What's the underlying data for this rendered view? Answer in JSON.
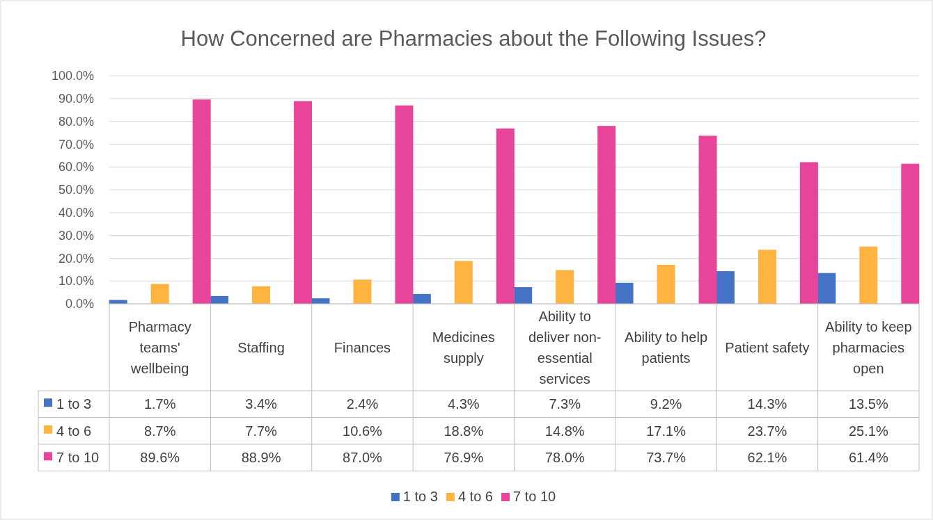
{
  "chart_data": {
    "type": "bar",
    "title": "How Concerned are Pharmacies about the Following Issues?",
    "categories": [
      "Pharmacy teams' wellbeing",
      "Staffing",
      "Finances",
      "Medicines supply",
      "Ability to deliver non-essential services",
      "Ability to help patients",
      "Patient safety",
      "Ability to keep pharmacies open"
    ],
    "series": [
      {
        "name": "1 to 3",
        "color": "#4472c4",
        "values": [
          1.7,
          3.4,
          2.4,
          4.3,
          7.3,
          9.2,
          14.3,
          13.5
        ],
        "value_labels": [
          "1.7%",
          "3.4%",
          "2.4%",
          "4.3%",
          "7.3%",
          "9.2%",
          "14.3%",
          "13.5%"
        ]
      },
      {
        "name": "4 to 6",
        "color": "#ffb340",
        "values": [
          8.7,
          7.7,
          10.6,
          18.8,
          14.8,
          17.1,
          23.7,
          25.1
        ],
        "value_labels": [
          "8.7%",
          "7.7%",
          "10.6%",
          "18.8%",
          "14.8%",
          "17.1%",
          "23.7%",
          "25.1%"
        ]
      },
      {
        "name": "7 to 10",
        "color": "#e8459a",
        "values": [
          89.6,
          88.9,
          87.0,
          76.9,
          78.0,
          73.7,
          62.1,
          61.4
        ],
        "value_labels": [
          "89.6%",
          "88.9%",
          "87.0%",
          "76.9%",
          "78.0%",
          "73.7%",
          "62.1%",
          "61.4%"
        ]
      }
    ],
    "ylim": [
      0,
      100
    ],
    "yticks": [
      {
        "value": 0,
        "label": "0.0%"
      },
      {
        "value": 10,
        "label": "10.0%"
      },
      {
        "value": 20,
        "label": "20.0%"
      },
      {
        "value": 30,
        "label": "30.0%"
      },
      {
        "value": 40,
        "label": "40.0%"
      },
      {
        "value": 50,
        "label": "50.0%"
      },
      {
        "value": 60,
        "label": "60.0%"
      },
      {
        "value": 70,
        "label": "70.0%"
      },
      {
        "value": 80,
        "label": "80.0%"
      },
      {
        "value": 90,
        "label": "90.0%"
      },
      {
        "value": 100,
        "label": "100.0%"
      }
    ],
    "grid": "y",
    "legend": "bottom"
  }
}
